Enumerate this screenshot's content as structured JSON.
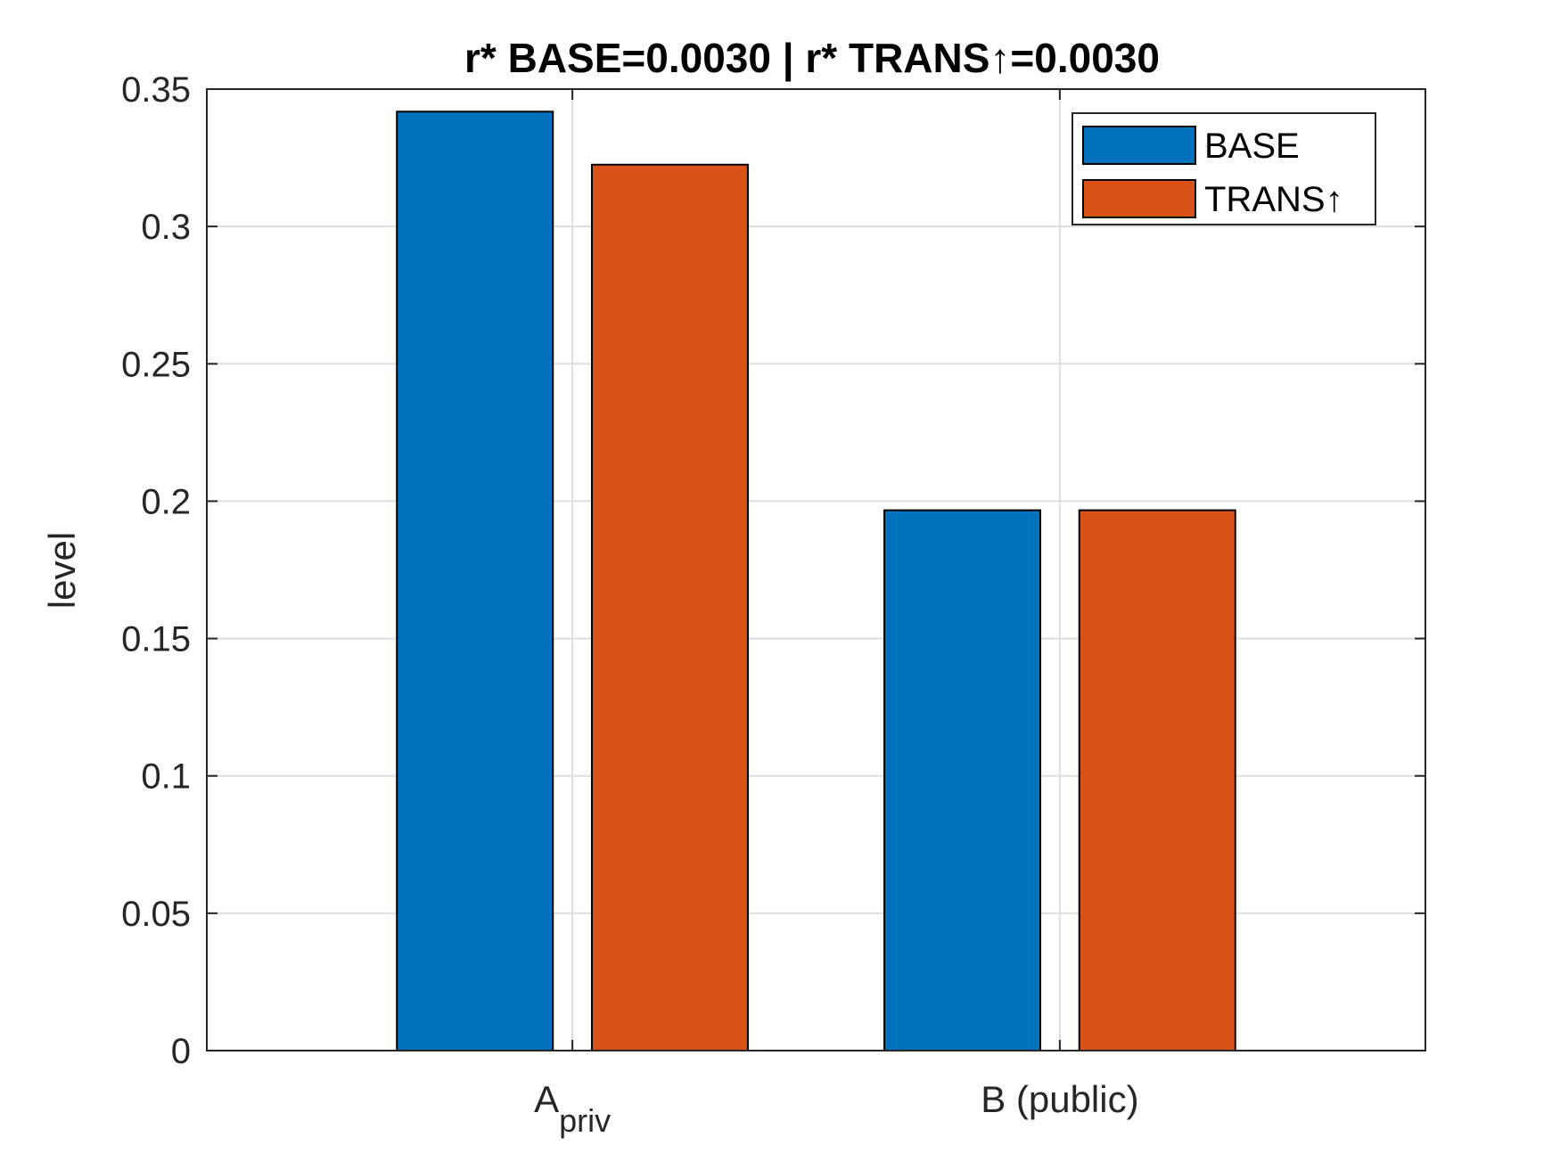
{
  "chart_data": {
    "type": "bar",
    "title": "r* BASE=0.0030 | r* TRANS↑=0.0030",
    "xlabel": "",
    "ylabel": "level",
    "categories": [
      {
        "main": "A",
        "sub": "priv"
      },
      {
        "main": "B (public)",
        "sub": ""
      }
    ],
    "series": [
      {
        "name": "BASE",
        "color": "#0072BD",
        "values": [
          0.3418,
          0.1967
        ]
      },
      {
        "name": "TRANS↑",
        "color": "#D95319",
        "values": [
          0.3225,
          0.1967
        ]
      }
    ],
    "ylim": [
      0,
      0.35
    ],
    "yticks": [
      0,
      0.05,
      0.1,
      0.15,
      0.2,
      0.25,
      0.3,
      0.35
    ],
    "ytick_labels": [
      "0",
      "0.05",
      "0.1",
      "0.15",
      "0.2",
      "0.25",
      "0.3",
      "0.35"
    ],
    "grid": true,
    "legend_position": "top-right"
  }
}
